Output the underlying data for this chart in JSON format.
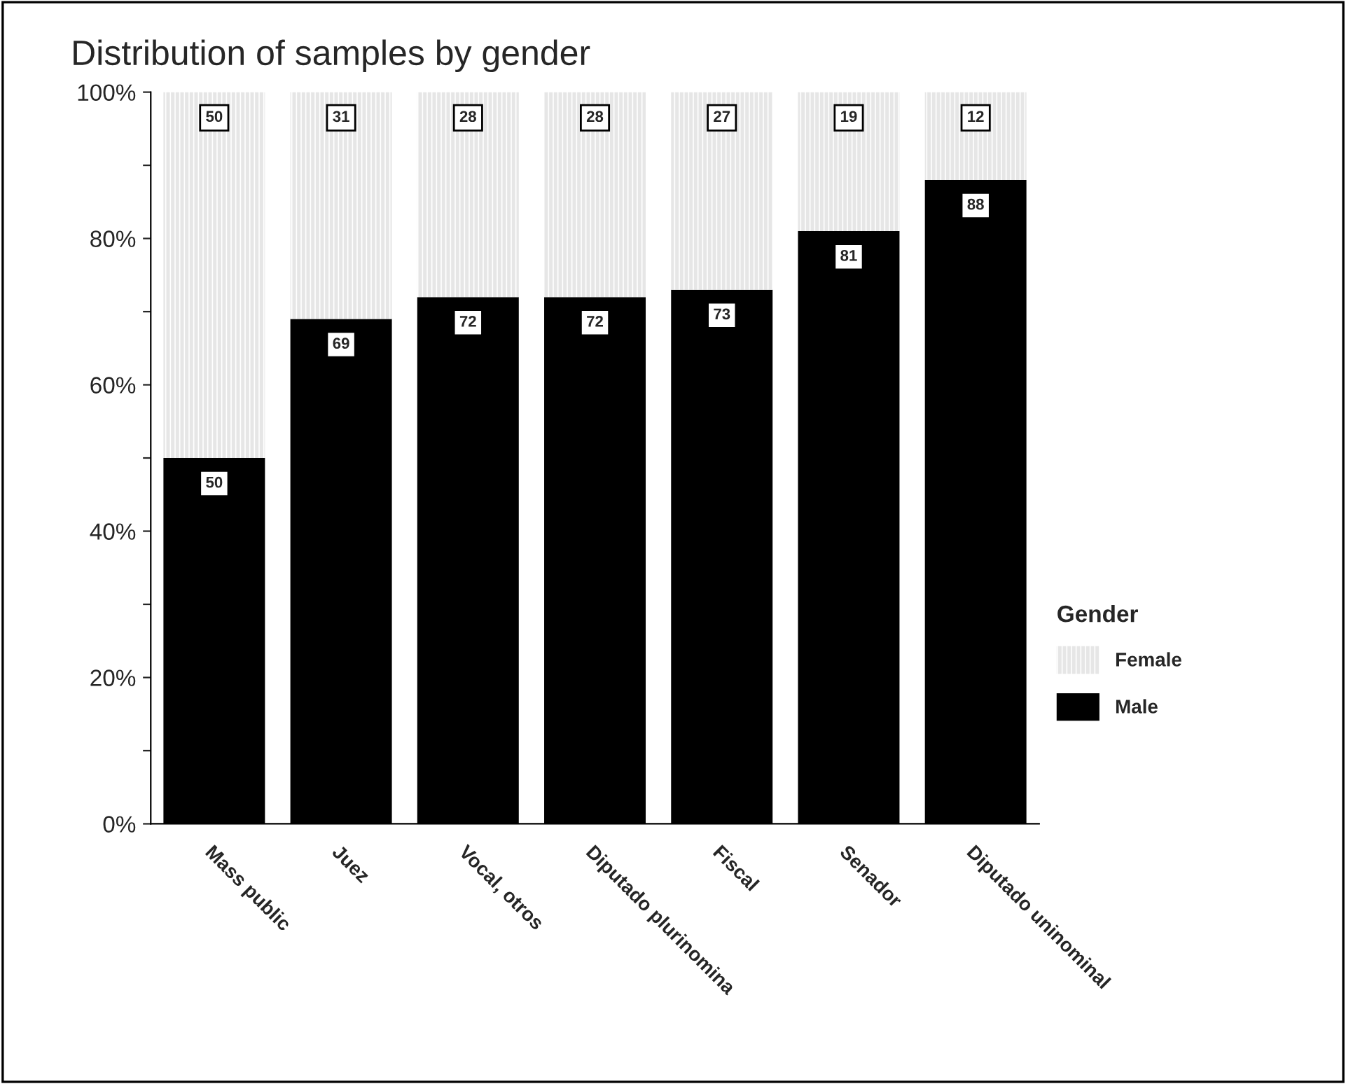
{
  "chart_data": {
    "type": "bar",
    "title": "Distribution of samples by gender",
    "categories": [
      "Mass public",
      "Juez",
      "Vocal, otros",
      "Diputado plurinomina",
      "Fiscal",
      "Senador",
      "Diputado uninominal"
    ],
    "series": [
      {
        "name": "Male",
        "color": "#000000",
        "values": [
          50,
          69,
          72,
          72,
          73,
          81,
          88
        ]
      },
      {
        "name": "Female",
        "color": "#e6e6e6",
        "values": [
          50,
          31,
          28,
          28,
          27,
          19,
          12
        ]
      }
    ],
    "stacked": true,
    "data_labels": true,
    "legend": "right",
    "legend_title": "Gender",
    "grid": false,
    "ylim": [
      0,
      100
    ],
    "yticks": [
      {
        "value": 0,
        "label": "0%"
      },
      {
        "value": 10,
        "label": null
      },
      {
        "value": 20,
        "label": "20%"
      },
      {
        "value": 30,
        "label": null
      },
      {
        "value": 40,
        "label": "40%"
      },
      {
        "value": 50,
        "label": null
      },
      {
        "value": 60,
        "label": "60%"
      },
      {
        "value": 70,
        "label": null
      },
      {
        "value": 80,
        "label": "80%"
      },
      {
        "value": 90,
        "label": null
      },
      {
        "value": 100,
        "label": "100%"
      }
    ]
  }
}
